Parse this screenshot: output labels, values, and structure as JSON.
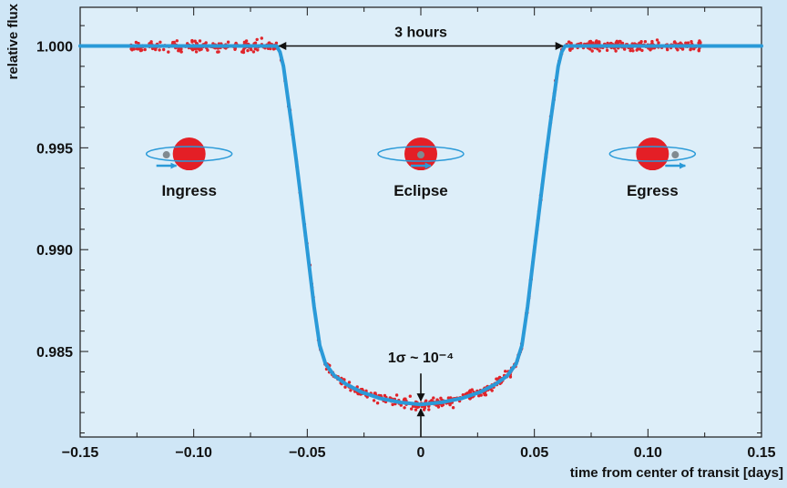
{
  "chart_data": {
    "type": "scatter",
    "xlabel": "time from center of transit [days]",
    "ylabel": "relative flux",
    "xlim": [
      -0.15,
      0.15
    ],
    "ylim": [
      0.9808,
      1.0019
    ],
    "x_ticks": [
      -0.15,
      -0.1,
      -0.05,
      0,
      0.05,
      0.1,
      0.15
    ],
    "x_tick_labels": [
      "−0.15",
      "−0.10",
      "−0.05",
      "0",
      "0.05",
      "0.10",
      "0.15"
    ],
    "y_ticks": [
      1.0,
      0.995,
      0.99,
      0.985
    ],
    "y_tick_labels": [
      "1.000",
      "0.995",
      "0.990",
      "0.985"
    ],
    "grid": false,
    "colors": {
      "plot_background": "#ddeef9",
      "outer_background": "#cfe6f6",
      "model_line": "#2a9ad8",
      "data_points": "#e0242a",
      "star": "#e41f26",
      "orbit": "#2a9ad8",
      "planet": "#808a90"
    },
    "series": [
      {
        "role": "model curve",
        "points": [
          [
            -0.15,
            1.0
          ],
          [
            -0.0635,
            1.0
          ],
          [
            -0.062,
            0.9997
          ],
          [
            -0.0605,
            0.999
          ],
          [
            -0.059,
            0.9978
          ],
          [
            -0.057,
            0.9962
          ],
          [
            -0.055,
            0.9945
          ],
          [
            -0.053,
            0.9927
          ],
          [
            -0.05,
            0.99
          ],
          [
            -0.047,
            0.9872
          ],
          [
            -0.0445,
            0.9853
          ],
          [
            -0.042,
            0.9844
          ],
          [
            -0.038,
            0.9838
          ],
          [
            -0.033,
            0.9834
          ],
          [
            -0.026,
            0.983
          ],
          [
            -0.018,
            0.9827
          ],
          [
            -0.009,
            0.9825
          ],
          [
            0,
            0.9824
          ],
          [
            0.009,
            0.9825
          ],
          [
            0.018,
            0.9827
          ],
          [
            0.026,
            0.983
          ],
          [
            0.033,
            0.9834
          ],
          [
            0.038,
            0.9838
          ],
          [
            0.042,
            0.9844
          ],
          [
            0.0445,
            0.9853
          ],
          [
            0.047,
            0.9872
          ],
          [
            0.05,
            0.99
          ],
          [
            0.053,
            0.9927
          ],
          [
            0.055,
            0.9945
          ],
          [
            0.057,
            0.9962
          ],
          [
            0.059,
            0.9978
          ],
          [
            0.0605,
            0.999
          ],
          [
            0.062,
            0.9997
          ],
          [
            0.0635,
            1.0
          ],
          [
            0.15,
            1.0
          ]
        ]
      },
      {
        "role": "observations",
        "x_range": [
          -0.128,
          0.124
        ],
        "noise_sigma": 0.00012,
        "points_per_day": 3200
      }
    ],
    "phases": [
      {
        "label": "Ingress",
        "x": -0.102,
        "y": 0.9947,
        "planet_position": "left"
      },
      {
        "label": "Eclipse",
        "x": 0.0,
        "y": 0.9947,
        "planet_position": "center"
      },
      {
        "label": "Egress",
        "x": 0.102,
        "y": 0.9947,
        "planet_position": "right"
      }
    ],
    "annotations": [
      {
        "label": "3 hours",
        "from_x": -0.0625,
        "to_x": 0.0625,
        "y": 1.0
      },
      {
        "label": "1σ ~ 10⁻⁴",
        "x": 0.0,
        "y": 0.9824
      }
    ]
  }
}
